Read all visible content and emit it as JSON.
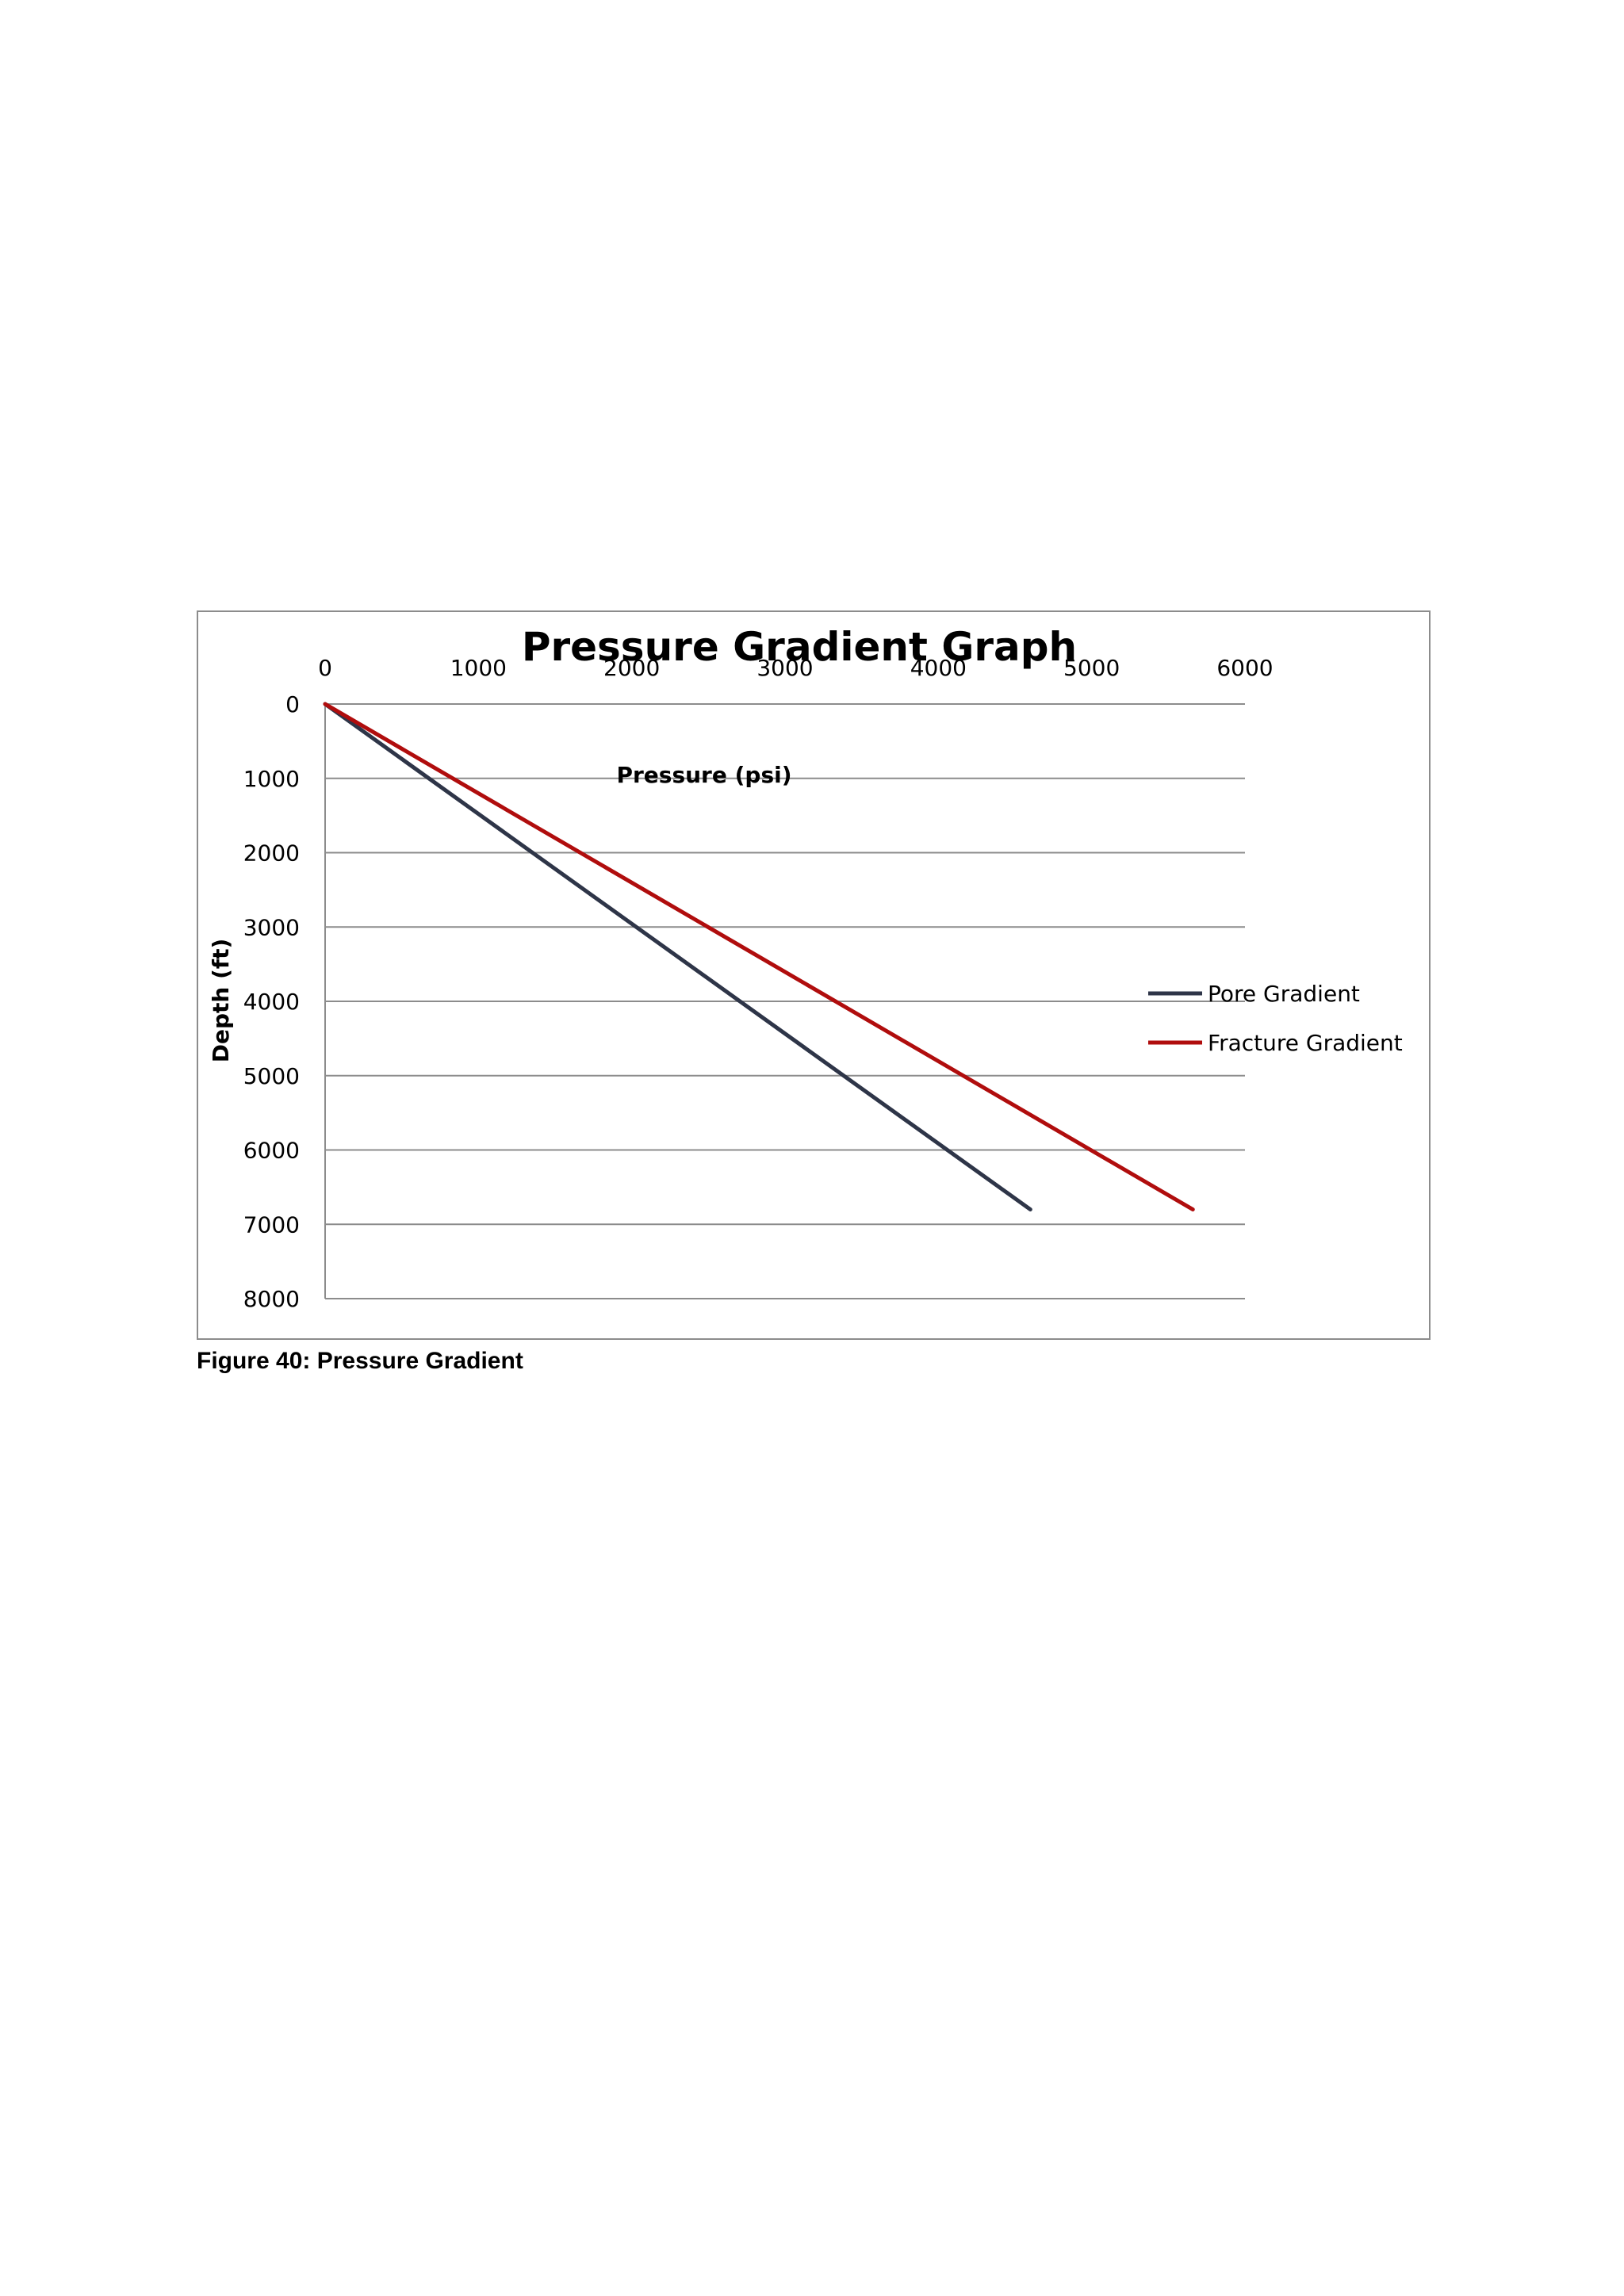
{
  "chart_data": {
    "type": "line",
    "title": "Pressure Gradient Graph",
    "xlabel": "Pressure (psi)",
    "ylabel": "Depth (ft)",
    "xlim": [
      0,
      6000
    ],
    "ylim": [
      0,
      8000
    ],
    "x_ticks": [
      "0",
      "1000",
      "2000",
      "3000",
      "4000",
      "5000",
      "6000"
    ],
    "y_ticks": [
      "0",
      "1000",
      "2000",
      "3000",
      "4000",
      "5000",
      "6000",
      "7000",
      "8000"
    ],
    "x_axis_position": "top",
    "y_axis_reversed": true,
    "grid": "horizontal",
    "legend_position": "right",
    "series": [
      {
        "name": "Pore Gradient",
        "color": "#2e3548",
        "points": [
          [
            0,
            0
          ],
          [
            4600,
            6800
          ]
        ]
      },
      {
        "name": "Fracture Gradient",
        "color": "#b00d0d",
        "points": [
          [
            0,
            0
          ],
          [
            5660,
            6800
          ]
        ]
      }
    ]
  },
  "caption": "Figure 40: Pressure Gradient"
}
